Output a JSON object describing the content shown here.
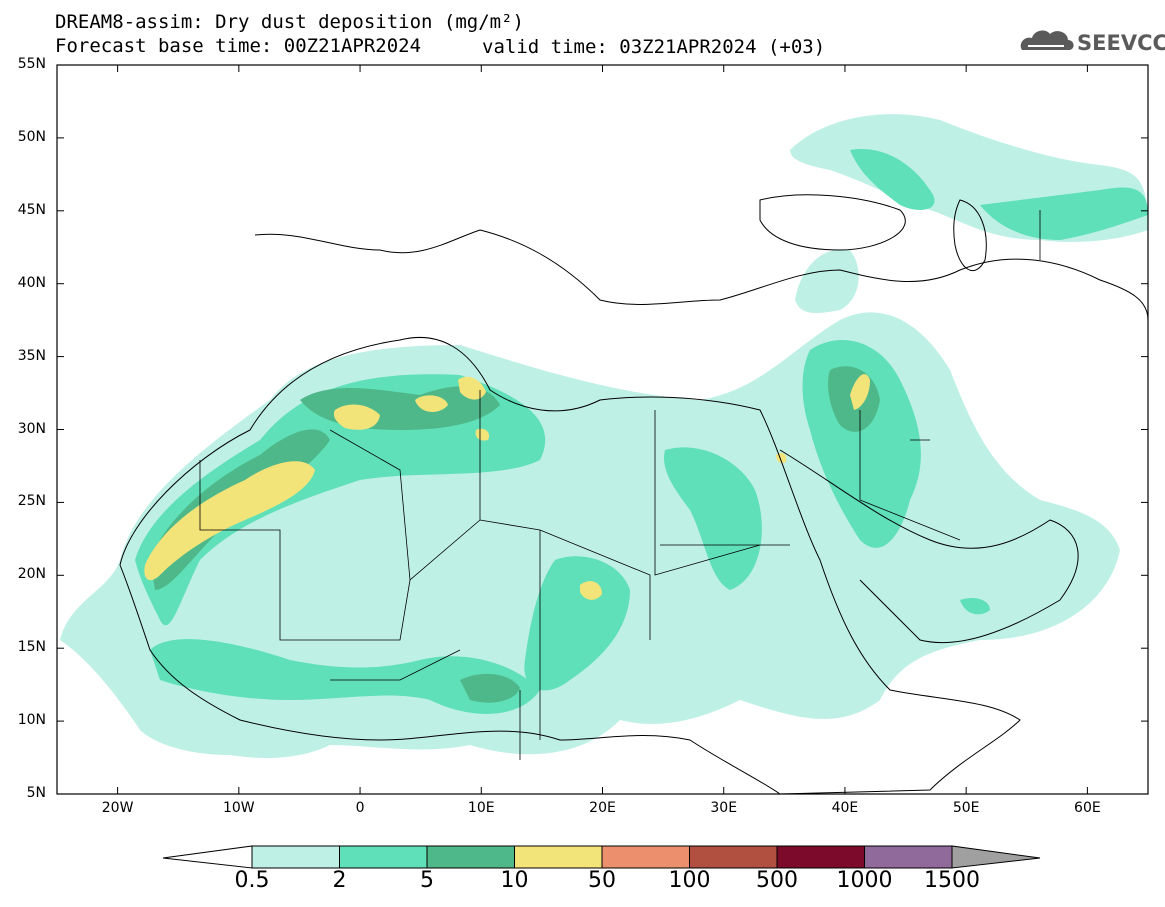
{
  "header": {
    "title_line1": "DREAM8-assim: Dry dust deposition (mg/m²)",
    "title_line2_left": "Forecast base time: 00Z21APR2024",
    "title_line2_right": "valid time: 03Z21APR2024 (+03)",
    "logo_text": "SEEVCCC"
  },
  "map": {
    "lat_labels": [
      "55N",
      "50N",
      "45N",
      "40N",
      "35N",
      "30N",
      "25N",
      "20N",
      "15N",
      "10N",
      "5N"
    ],
    "lon_labels": [
      "20W",
      "10W",
      "0",
      "10E",
      "20E",
      "30E",
      "40E",
      "50E",
      "60E"
    ],
    "lon_range": [
      -25,
      65
    ],
    "lat_range": [
      5,
      55
    ]
  },
  "colorbar": {
    "labels": [
      "0.5",
      "2",
      "5",
      "10",
      "50",
      "100",
      "500",
      "1000",
      "1500"
    ],
    "colors": [
      "#bff0e6",
      "#5fe0b8",
      "#4fb88a",
      "#f3e47a",
      "#ec8f6c",
      "#b14f40",
      "#7c0a2a",
      "#8f6a9a"
    ],
    "below_color": "#ffffff",
    "above_color": "#a0a0a0"
  },
  "field_colors": {
    "level1": "#bff0e6",
    "level2": "#5fe0b8",
    "level3": "#4fb88a",
    "level4": "#f3e47a"
  }
}
